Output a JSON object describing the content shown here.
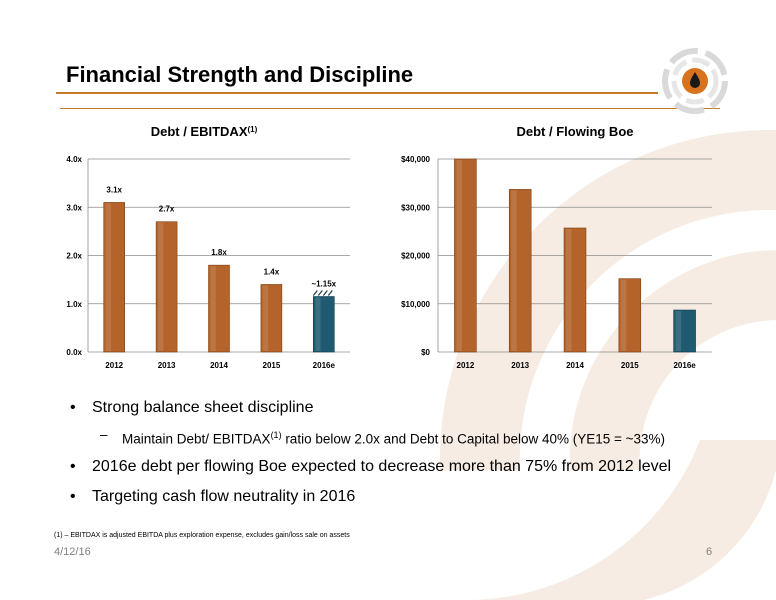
{
  "slide": {
    "title": "Financial Strength and Discipline",
    "date": "4/12/16",
    "page_number": "6",
    "footnote": "(1) – EBITDAX is adjusted EBITDA plus exploration expense, excludes gain/loss sale on assets"
  },
  "bullets": [
    {
      "text": "Strong balance sheet discipline"
    },
    {
      "text": "2016e debt per flowing Boe expected to decrease more than 75% from 2012 level"
    },
    {
      "text": "Targeting cash flow neutrality in 2016"
    }
  ],
  "sub_bullet": {
    "before": "Maintain Debt/ EBITDAX",
    "sup": "(1)",
    "after": " ratio below 2.0x and Debt to Capital below 40% (YE15 = ~33%)"
  },
  "colors": {
    "accent_rule": "#c87a2c",
    "bar_brown": "#b4642a",
    "bar_teal": "#1f5a70",
    "background_arc": "#f4e8de"
  },
  "chart_data": [
    {
      "type": "bar",
      "title": "Debt / EBITDAX",
      "title_sup": "(1)",
      "categories": [
        "2012",
        "2013",
        "2014",
        "2015",
        "2016e"
      ],
      "values": [
        3.1,
        2.7,
        1.8,
        1.4,
        1.15
      ],
      "data_labels": [
        "3.1x",
        "2.7x",
        "1.8x",
        "1.4x",
        "~1.15x"
      ],
      "yticks": [
        "0.0x",
        "1.0x",
        "2.0x",
        "3.0x",
        "4.0x"
      ],
      "ylim": [
        0,
        4
      ],
      "grid": true,
      "legend": "none"
    },
    {
      "type": "bar",
      "title": "Debt / Flowing Boe",
      "categories": [
        "2012",
        "2013",
        "2014",
        "2015",
        "2016e"
      ],
      "values": [
        40000,
        33700,
        25700,
        15200,
        8700
      ],
      "yticks": [
        "$0",
        "$10,000",
        "$20,000",
        "$30,000",
        "$40,000"
      ],
      "ylim": [
        0,
        40000
      ],
      "grid": true,
      "legend": "none"
    }
  ]
}
